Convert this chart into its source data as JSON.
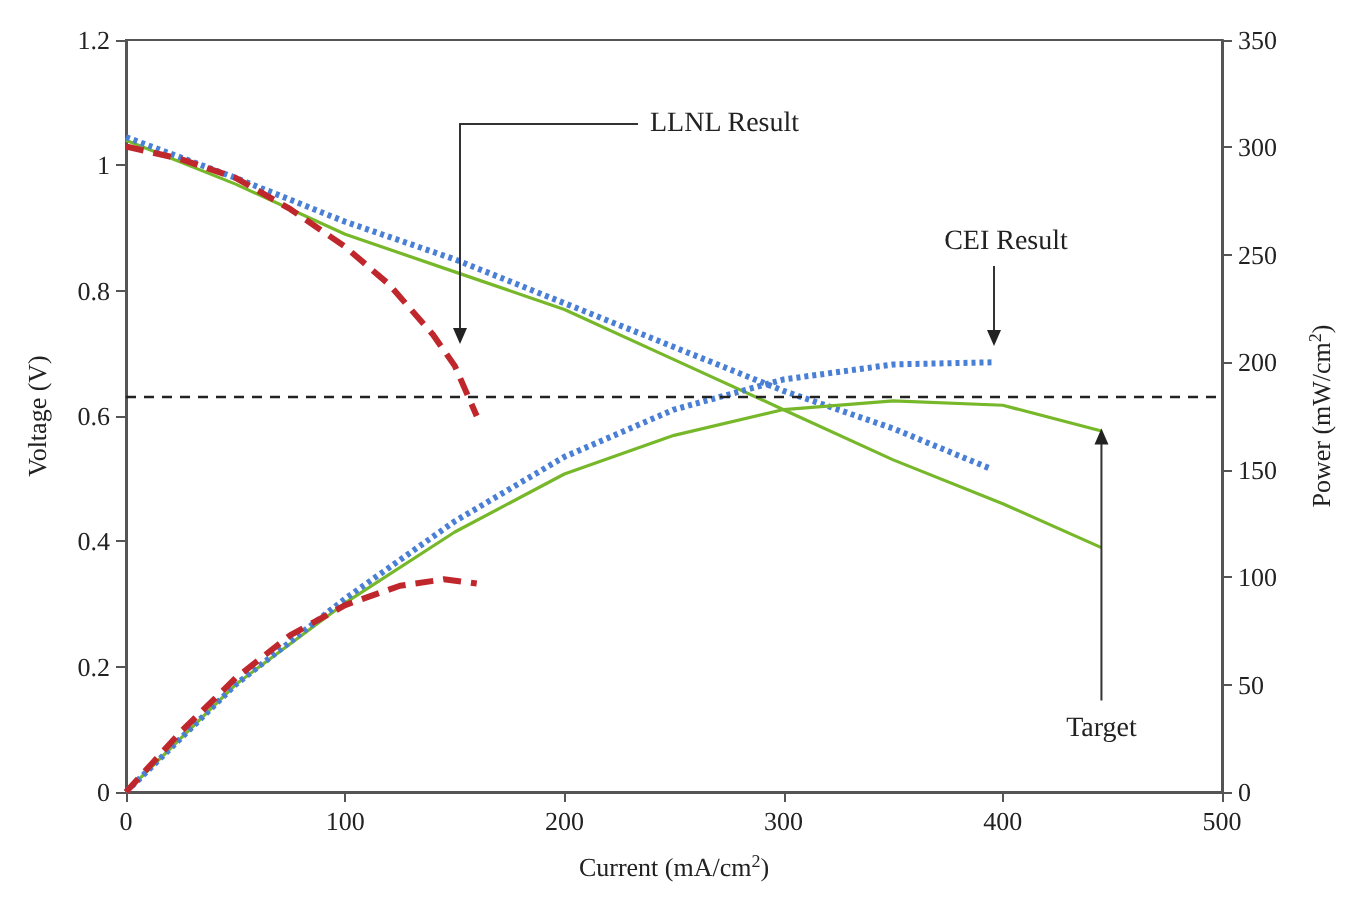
{
  "chart_data": {
    "type": "line",
    "xlabel": "Current (mA/cm$^{2}$)",
    "ylabel": "Voltage (V)",
    "y2label": "Power (mW/cm$^{2}$)",
    "xlim": [
      0,
      500
    ],
    "xticks": [
      0,
      100,
      200,
      300,
      400,
      500
    ],
    "ylim": [
      0,
      1.2
    ],
    "yticks": [
      0,
      0.2,
      0.4,
      0.6,
      0.8,
      1,
      1.2
    ],
    "y2lim": [
      0,
      350
    ],
    "y2ticks": [
      0,
      50,
      100,
      150,
      200,
      250,
      300,
      350
    ],
    "grid": false,
    "marker": "none",
    "series": [
      {
        "color": "#77b82a",
        "line_style": "solid",
        "axis": "y",
        "x": [
          0,
          50,
          100,
          150,
          200,
          250,
          300,
          350,
          400,
          445
        ],
        "values": [
          1.04,
          0.97,
          0.89,
          0.83,
          0.77,
          0.69,
          0.61,
          0.53,
          0.46,
          0.39
        ]
      },
      {
        "color": "#4a7fd6",
        "line_style": "dotted",
        "axis": "y",
        "x": [
          0,
          50,
          100,
          150,
          200,
          250,
          300,
          350,
          395
        ],
        "values": [
          1.045,
          0.98,
          0.91,
          0.85,
          0.78,
          0.71,
          0.64,
          0.58,
          0.515
        ]
      },
      {
        "color": "#c0272d",
        "line_style": "dashed",
        "axis": "y",
        "x": [
          0,
          25,
          50,
          75,
          100,
          120,
          140,
          150,
          160
        ],
        "values": [
          1.03,
          1.01,
          0.98,
          0.93,
          0.87,
          0.81,
          0.73,
          0.68,
          0.6
        ]
      },
      {
        "color": "#77b82a",
        "line_style": "solid",
        "axis": "y2",
        "x": [
          0,
          50,
          100,
          150,
          200,
          250,
          300,
          350,
          400,
          445
        ],
        "values": [
          0,
          50,
          88,
          121,
          148,
          166,
          178,
          182,
          180,
          168
        ]
      },
      {
        "color": "#4a7fd6",
        "line_style": "dotted",
        "axis": "y2",
        "x": [
          0,
          50,
          100,
          150,
          200,
          250,
          300,
          350,
          395
        ],
        "values": [
          0,
          50,
          90,
          126,
          156,
          178,
          192,
          199,
          200
        ]
      },
      {
        "color": "#c0272d",
        "line_style": "dashed",
        "axis": "y2",
        "x": [
          0,
          25,
          50,
          75,
          100,
          125,
          145,
          160
        ],
        "values": [
          0,
          28,
          53,
          73,
          87,
          96,
          99,
          97
        ]
      }
    ],
    "ref_lines": [
      {
        "axis": "y",
        "value": 0.63,
        "color": "#222222",
        "line_style": "dashed"
      }
    ],
    "annotations": [
      "LLNL Result",
      "CEI Result",
      {
        "text": "Target",
        "x": 445,
        "y": 0.58
      }
    ]
  }
}
